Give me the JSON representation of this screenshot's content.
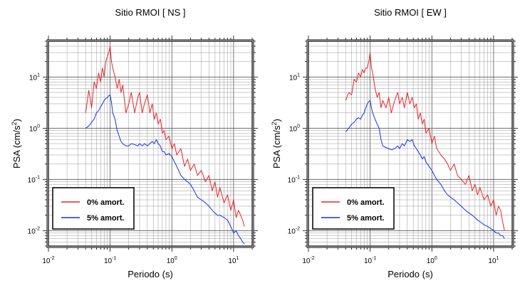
{
  "colors": {
    "damp0": "#e8242a",
    "damp5": "#1a2fe0"
  },
  "chart_data": [
    {
      "type": "line",
      "title": "Sitio RMOI [ NS ]",
      "xlabel": "Periodo (s)",
      "ylabel": "PSA (cm/s2)",
      "xscale": "log",
      "yscale": "log",
      "xlim": [
        0.01,
        20
      ],
      "ylim": [
        0.005,
        50
      ],
      "grid": true,
      "legend_position": "bottom-left",
      "x_ticks": [
        {
          "value": 0.01,
          "base": "10",
          "exp": "-2"
        },
        {
          "value": 0.1,
          "base": "10",
          "exp": "-1"
        },
        {
          "value": 1,
          "base": "10",
          "exp": "0"
        },
        {
          "value": 10,
          "base": "10",
          "exp": "1"
        }
      ],
      "y_ticks": [
        {
          "value": 0.01,
          "base": "10",
          "exp": "-2"
        },
        {
          "value": 0.1,
          "base": "10",
          "exp": "-1"
        },
        {
          "value": 1,
          "base": "10",
          "exp": "0"
        },
        {
          "value": 10,
          "base": "10",
          "exp": "1"
        }
      ],
      "series": [
        {
          "name": "0% amort.",
          "color": "#e8242a",
          "x": [
            0.04,
            0.045,
            0.05,
            0.055,
            0.06,
            0.065,
            0.07,
            0.075,
            0.08,
            0.085,
            0.09,
            0.095,
            0.1,
            0.105,
            0.11,
            0.12,
            0.13,
            0.14,
            0.15,
            0.16,
            0.18,
            0.2,
            0.22,
            0.25,
            0.28,
            0.3,
            0.33,
            0.36,
            0.4,
            0.44,
            0.48,
            0.52,
            0.56,
            0.6,
            0.65,
            0.7,
            0.75,
            0.8,
            0.9,
            1.0,
            1.1,
            1.2,
            1.4,
            1.6,
            1.8,
            2.0,
            2.3,
            2.6,
            3.0,
            3.5,
            4.0,
            4.5,
            5.0,
            5.5,
            6.0,
            7.0,
            8.0,
            9.0,
            10.0,
            11.0,
            12.0,
            13.0,
            14.0,
            15.0
          ],
          "y": [
            2.0,
            5.5,
            2.5,
            8.0,
            6.0,
            12,
            8.0,
            15,
            10,
            20,
            25,
            30,
            40,
            20,
            15,
            10,
            6.0,
            9.0,
            5.0,
            7.0,
            2.0,
            3.0,
            5.0,
            2.0,
            4.0,
            5.0,
            2.0,
            3.0,
            4.5,
            2.0,
            3.0,
            1.5,
            2.0,
            1.2,
            1.5,
            0.8,
            0.9,
            0.6,
            0.7,
            0.4,
            0.5,
            0.3,
            0.4,
            0.18,
            0.25,
            0.15,
            0.2,
            0.12,
            0.15,
            0.09,
            0.12,
            0.06,
            0.09,
            0.045,
            0.07,
            0.035,
            0.05,
            0.025,
            0.04,
            0.018,
            0.025,
            0.02,
            0.016,
            0.012
          ]
        },
        {
          "name": "5% amort.",
          "color": "#1a2fe0",
          "x": [
            0.04,
            0.045,
            0.05,
            0.055,
            0.06,
            0.065,
            0.07,
            0.075,
            0.08,
            0.085,
            0.09,
            0.095,
            0.1,
            0.105,
            0.11,
            0.12,
            0.13,
            0.14,
            0.15,
            0.16,
            0.18,
            0.2,
            0.22,
            0.25,
            0.28,
            0.3,
            0.33,
            0.36,
            0.4,
            0.44,
            0.48,
            0.52,
            0.56,
            0.6,
            0.65,
            0.7,
            0.75,
            0.8,
            0.9,
            1.0,
            1.1,
            1.2,
            1.4,
            1.6,
            1.8,
            2.0,
            2.3,
            2.6,
            3.0,
            3.5,
            4.0,
            4.5,
            5.0,
            5.5,
            6.0,
            7.0,
            8.0,
            9.0,
            10.0,
            11.0,
            12.0,
            13.0,
            14.0,
            15.0
          ],
          "y": [
            1.0,
            1.1,
            1.3,
            1.5,
            2.0,
            2.2,
            2.6,
            3.0,
            3.5,
            3.8,
            4.0,
            4.3,
            4.5,
            3.2,
            2.0,
            1.5,
            0.9,
            0.7,
            0.55,
            0.5,
            0.45,
            0.45,
            0.5,
            0.48,
            0.45,
            0.5,
            0.45,
            0.5,
            0.45,
            0.5,
            0.55,
            0.5,
            0.6,
            0.5,
            0.45,
            0.35,
            0.35,
            0.3,
            0.32,
            0.28,
            0.22,
            0.18,
            0.12,
            0.1,
            0.09,
            0.08,
            0.06,
            0.045,
            0.04,
            0.035,
            0.03,
            0.025,
            0.022,
            0.02,
            0.02,
            0.018,
            0.016,
            0.012,
            0.009,
            0.01,
            0.008,
            0.007,
            0.006,
            0.0055
          ]
        }
      ]
    },
    {
      "type": "line",
      "title": "Sitio RMOI [ EW ]",
      "xlabel": "Periodo (s)",
      "ylabel": "PSA (cm/s2)",
      "xscale": "log",
      "yscale": "log",
      "xlim": [
        0.01,
        20
      ],
      "ylim": [
        0.005,
        50
      ],
      "grid": true,
      "legend_position": "bottom-left",
      "x_ticks": [
        {
          "value": 0.01,
          "base": "10",
          "exp": "-2"
        },
        {
          "value": 0.1,
          "base": "10",
          "exp": "-1"
        },
        {
          "value": 1,
          "base": "10",
          "exp": "0"
        },
        {
          "value": 10,
          "base": "10",
          "exp": "1"
        }
      ],
      "y_ticks": [
        {
          "value": 0.01,
          "base": "10",
          "exp": "-2"
        },
        {
          "value": 0.1,
          "base": "10",
          "exp": "-1"
        },
        {
          "value": 1,
          "base": "10",
          "exp": "0"
        },
        {
          "value": 10,
          "base": "10",
          "exp": "1"
        }
      ],
      "series": [
        {
          "name": "0% amort.",
          "color": "#e8242a",
          "x": [
            0.04,
            0.045,
            0.05,
            0.055,
            0.06,
            0.065,
            0.07,
            0.075,
            0.08,
            0.085,
            0.09,
            0.095,
            0.1,
            0.105,
            0.11,
            0.12,
            0.13,
            0.14,
            0.15,
            0.16,
            0.18,
            0.2,
            0.22,
            0.25,
            0.28,
            0.3,
            0.33,
            0.36,
            0.4,
            0.44,
            0.48,
            0.52,
            0.56,
            0.6,
            0.65,
            0.7,
            0.75,
            0.8,
            0.9,
            1.0,
            1.1,
            1.2,
            1.4,
            1.6,
            1.8,
            2.0,
            2.3,
            2.6,
            3.0,
            3.5,
            4.0,
            4.5,
            5.0,
            5.5,
            6.0,
            7.0,
            8.0,
            9.0,
            10.0,
            11.0,
            12.0,
            13.0,
            14.0,
            15.0
          ],
          "y": [
            3.5,
            5.0,
            4.5,
            9.0,
            8.0,
            12,
            10,
            14,
            12,
            15,
            15,
            20,
            30,
            15,
            12,
            6.0,
            4.0,
            5.0,
            2.5,
            3.5,
            2.5,
            4.0,
            2.0,
            3.5,
            5.0,
            3.0,
            4.0,
            2.5,
            5.0,
            3.0,
            4.0,
            2.5,
            3.0,
            1.5,
            2.0,
            1.2,
            1.5,
            0.8,
            1.0,
            0.5,
            0.7,
            0.4,
            0.3,
            0.25,
            0.2,
            0.15,
            0.2,
            0.12,
            0.1,
            0.08,
            0.12,
            0.06,
            0.08,
            0.05,
            0.07,
            0.04,
            0.05,
            0.03,
            0.04,
            0.02,
            0.03,
            0.025,
            0.015,
            0.01
          ]
        },
        {
          "name": "5% amort.",
          "color": "#1a2fe0",
          "x": [
            0.04,
            0.045,
            0.05,
            0.055,
            0.06,
            0.065,
            0.07,
            0.075,
            0.08,
            0.085,
            0.09,
            0.095,
            0.1,
            0.105,
            0.11,
            0.12,
            0.13,
            0.14,
            0.15,
            0.16,
            0.18,
            0.2,
            0.22,
            0.25,
            0.28,
            0.3,
            0.33,
            0.36,
            0.4,
            0.44,
            0.48,
            0.52,
            0.56,
            0.6,
            0.65,
            0.7,
            0.75,
            0.8,
            0.9,
            1.0,
            1.1,
            1.2,
            1.4,
            1.6,
            1.8,
            2.0,
            2.3,
            2.6,
            3.0,
            3.5,
            4.0,
            4.5,
            5.0,
            5.5,
            6.0,
            7.0,
            8.0,
            9.0,
            10.0,
            11.0,
            12.0,
            13.0,
            14.0,
            15.0
          ],
          "y": [
            0.85,
            1.0,
            1.2,
            1.3,
            1.5,
            1.6,
            1.5,
            1.8,
            2.0,
            2.5,
            3.0,
            3.3,
            3.5,
            2.5,
            2.0,
            1.5,
            1.2,
            1.0,
            0.6,
            0.45,
            0.42,
            0.4,
            0.38,
            0.4,
            0.45,
            0.4,
            0.5,
            0.45,
            0.6,
            0.55,
            0.6,
            0.45,
            0.4,
            0.35,
            0.3,
            0.25,
            0.28,
            0.22,
            0.18,
            0.15,
            0.12,
            0.1,
            0.08,
            0.06,
            0.05,
            0.045,
            0.04,
            0.035,
            0.03,
            0.025,
            0.022,
            0.02,
            0.018,
            0.016,
            0.015,
            0.013,
            0.012,
            0.011,
            0.01,
            0.009,
            0.009,
            0.008,
            0.008,
            0.007
          ]
        }
      ]
    }
  ]
}
